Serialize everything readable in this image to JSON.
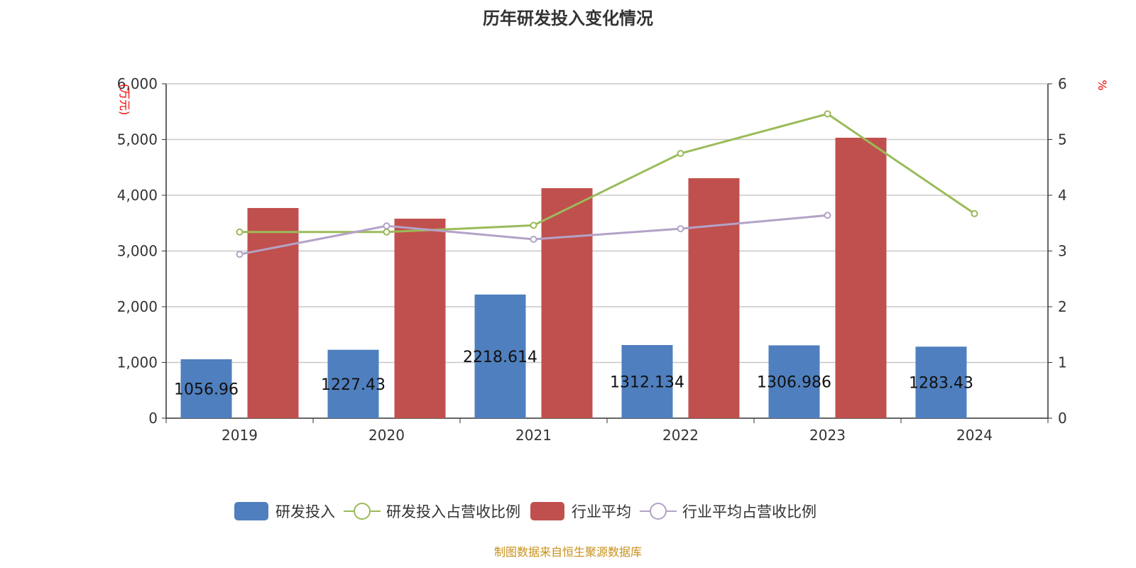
{
  "chart_data": {
    "type": "bar",
    "title": "历年研发投入变化情况",
    "categories": [
      "2019",
      "2020",
      "2021",
      "2022",
      "2023",
      "2024"
    ],
    "ylabel_left": "(万元)",
    "ylabel_right": "%",
    "ylim_left": [
      0,
      6000
    ],
    "ylim_right": [
      0,
      6
    ],
    "yticks_left": [
      "0",
      "1,000",
      "2,000",
      "3,000",
      "4,000",
      "5,000",
      "6,000"
    ],
    "yticks_right": [
      "0",
      "1",
      "2",
      "3",
      "4",
      "5",
      "6"
    ],
    "grid": true,
    "legend_position": "bottom",
    "series": [
      {
        "name": "研发投入",
        "type": "bar",
        "axis": "left",
        "color": "#4f7fbe",
        "values": [
          1056.96,
          1227.43,
          2218.614,
          1312.134,
          1306.986,
          1283.43
        ],
        "labels": [
          "1056.96",
          "1227.43",
          "2218.614",
          "1312.134",
          "1306.986",
          "1283.43"
        ]
      },
      {
        "name": "研发投入占营收比例",
        "type": "line",
        "axis": "right",
        "color": "#9bbb59",
        "values": [
          3.34,
          3.34,
          3.46,
          4.75,
          5.46,
          3.67
        ]
      },
      {
        "name": "行业平均",
        "type": "bar",
        "axis": "left",
        "color": "#c0504d",
        "values": [
          3771,
          3580,
          4127,
          4306,
          5032,
          null
        ]
      },
      {
        "name": "行业平均占营收比例",
        "type": "line",
        "axis": "right",
        "color": "#b3a2c7",
        "values": [
          2.94,
          3.45,
          3.21,
          3.4,
          3.64,
          null
        ]
      }
    ]
  },
  "source": "制图数据来自恒生聚源数据库"
}
